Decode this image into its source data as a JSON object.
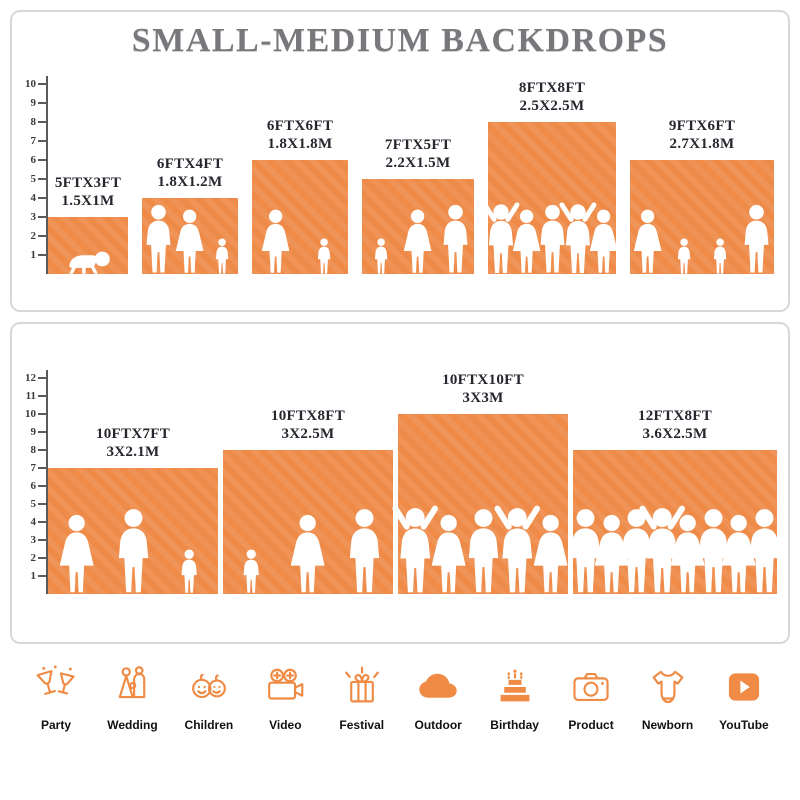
{
  "title": "SMALL-MEDIUM BACKDROPS",
  "colors": {
    "orange": "#EE8B49",
    "title_gray": "#77787c",
    "label_dark": "#26262e",
    "ruler": "#5a5a5a"
  },
  "chart_data": [
    {
      "type": "bar",
      "name": "small-medium-backdrops",
      "title": "SMALL-MEDIUM BACKDROPS",
      "ylim": [
        0,
        10
      ],
      "units": "ft",
      "bars": [
        {
          "size_ft": "5FTX3FT",
          "size_m": "1.5X1M",
          "width_ft": 5,
          "height_ft": 3,
          "figures": [
            "baby"
          ]
        },
        {
          "size_ft": "6FTX4FT",
          "size_m": "1.8X1.2M",
          "width_ft": 6,
          "height_ft": 4,
          "figures": [
            "man",
            "woman",
            "child"
          ]
        },
        {
          "size_ft": "6FTX6FT",
          "size_m": "1.8X1.8M",
          "width_ft": 6,
          "height_ft": 6,
          "figures": [
            "woman",
            "child"
          ]
        },
        {
          "size_ft": "7FTX5FT",
          "size_m": "2.2X1.5M",
          "width_ft": 7,
          "height_ft": 5,
          "figures": [
            "child",
            "woman",
            "man"
          ]
        },
        {
          "size_ft": "8FTX8FT",
          "size_m": "2.5X2.5M",
          "width_ft": 8,
          "height_ft": 8,
          "figures": [
            "armsup",
            "woman",
            "man",
            "armsup",
            "woman"
          ]
        },
        {
          "size_ft": "9FTX6FT",
          "size_m": "2.7X1.8M",
          "width_ft": 9,
          "height_ft": 6,
          "figures": [
            "woman",
            "child",
            "child",
            "man"
          ]
        }
      ]
    },
    {
      "type": "bar",
      "name": "medium-large-backdrops",
      "ylim": [
        0,
        12
      ],
      "units": "ft",
      "bars": [
        {
          "size_ft": "10FTX7FT",
          "size_m": "3X2.1M",
          "width_ft": 10,
          "height_ft": 7,
          "figures": [
            "woman",
            "man",
            "child"
          ]
        },
        {
          "size_ft": "10FTX8FT",
          "size_m": "3X2.5M",
          "width_ft": 10,
          "height_ft": 8,
          "figures": [
            "child",
            "woman",
            "man"
          ]
        },
        {
          "size_ft": "10FTX10FT",
          "size_m": "3X3M",
          "width_ft": 10,
          "height_ft": 10,
          "figures": [
            "armsup",
            "woman",
            "man",
            "armsup",
            "woman"
          ]
        },
        {
          "size_ft": "12FTX8FT",
          "size_m": "3.6X2.5M",
          "width_ft": 12,
          "height_ft": 8,
          "figures": [
            "man",
            "woman",
            "man",
            "armsup",
            "woman",
            "man",
            "woman",
            "man"
          ]
        }
      ]
    }
  ],
  "categories": [
    {
      "icon": "party-icon",
      "label": "Party"
    },
    {
      "icon": "wedding-icon",
      "label": "Wedding"
    },
    {
      "icon": "children-icon",
      "label": "Children"
    },
    {
      "icon": "video-icon",
      "label": "Video"
    },
    {
      "icon": "festival-icon",
      "label": "Festival"
    },
    {
      "icon": "outdoor-icon",
      "label": "Outdoor"
    },
    {
      "icon": "birthday-icon",
      "label": "Birthday"
    },
    {
      "icon": "product-icon",
      "label": "Product"
    },
    {
      "icon": "newborn-icon",
      "label": "Newborn"
    },
    {
      "icon": "youtube-icon",
      "label": "YouTube"
    }
  ]
}
